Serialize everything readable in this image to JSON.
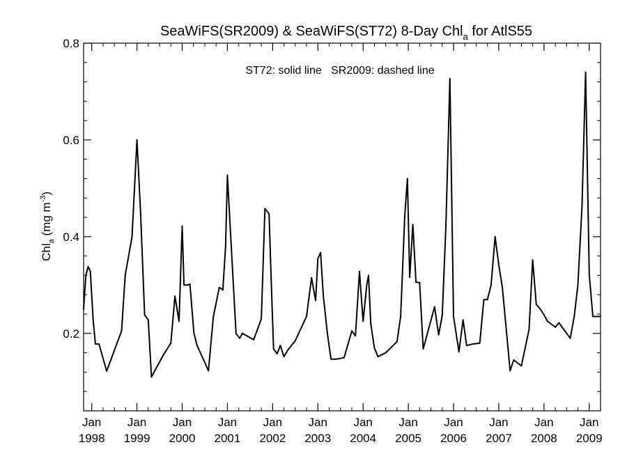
{
  "chart_data": {
    "type": "line",
    "title": {
      "main": "SeaWiFS(SR2009) & SeaWiFS(ST72) 8-Day Chl",
      "sub": "a",
      "tail": " for AtlS55"
    },
    "annotation": "ST72: solid line   SR2009: dashed line",
    "ylabel": {
      "base": "Chl",
      "sub": "a",
      "unit": " (mg m",
      "sup": "-3",
      "close": ")"
    },
    "xlim": [
      1997.82,
      2009.25
    ],
    "ylim": [
      0.04,
      0.8
    ],
    "yticks": [
      {
        "value": 0.2,
        "label": "0.2"
      },
      {
        "value": 0.4,
        "label": "0.4"
      },
      {
        "value": 0.6,
        "label": "0.6"
      },
      {
        "value": 0.8,
        "label": "0.8"
      }
    ],
    "xticks": [
      {
        "value": 1998,
        "month": "Jan",
        "year": "1998"
      },
      {
        "value": 1999,
        "month": "Jan",
        "year": "1999"
      },
      {
        "value": 2000,
        "month": "Jan",
        "year": "2000"
      },
      {
        "value": 2001,
        "month": "Jan",
        "year": "2001"
      },
      {
        "value": 2002,
        "month": "Jan",
        "year": "2002"
      },
      {
        "value": 2003,
        "month": "Jan",
        "year": "2003"
      },
      {
        "value": 2004,
        "month": "Jan",
        "year": "2004"
      },
      {
        "value": 2005,
        "month": "Jan",
        "year": "2005"
      },
      {
        "value": 2006,
        "month": "Jan",
        "year": "2006"
      },
      {
        "value": 2007,
        "month": "Jan",
        "year": "2007"
      },
      {
        "value": 2008,
        "month": "Jan",
        "year": "2008"
      },
      {
        "value": 2009,
        "month": "Jan",
        "year": "2009"
      }
    ],
    "grid": false,
    "series": [
      {
        "style": "solid",
        "color": "#000000",
        "x": [
          1997.82,
          1997.87,
          1997.92,
          1997.97,
          1998.03,
          1998.08,
          1998.16,
          1998.33,
          1998.58,
          1998.66,
          1998.74,
          1998.89,
          1999.0,
          1999.08,
          1999.17,
          1999.25,
          1999.32,
          1999.58,
          1999.75,
          1999.84,
          1999.93,
          2000.0,
          2000.04,
          2000.12,
          2000.17,
          2000.26,
          2000.33,
          2000.58,
          2000.69,
          2000.82,
          2000.9,
          2000.96,
          2001.0,
          2001.07,
          2001.19,
          2001.27,
          2001.33,
          2001.58,
          2001.75,
          2001.83,
          2001.92,
          2001.97,
          2002.02,
          2002.1,
          2002.17,
          2002.25,
          2002.33,
          2002.5,
          2002.75,
          2002.86,
          2002.95,
          2003.0,
          2003.06,
          2003.12,
          2003.21,
          2003.29,
          2003.42,
          2003.58,
          2003.75,
          2003.83,
          2003.92,
          2004.0,
          2004.08,
          2004.12,
          2004.17,
          2004.25,
          2004.33,
          2004.5,
          2004.75,
          2004.83,
          2004.92,
          2004.98,
          2005.03,
          2005.1,
          2005.17,
          2005.25,
          2005.33,
          2005.58,
          2005.67,
          2005.75,
          2005.83,
          2005.92,
          2006.0,
          2006.12,
          2006.21,
          2006.29,
          2006.42,
          2006.58,
          2006.67,
          2006.75,
          2006.83,
          2006.92,
          2007.0,
          2007.08,
          2007.25,
          2007.33,
          2007.5,
          2007.67,
          2007.75,
          2007.83,
          2007.92,
          2008.0,
          2008.08,
          2008.25,
          2008.33,
          2008.58,
          2008.67,
          2008.75,
          2008.84,
          2008.92,
          2009.0,
          2009.08,
          2009.25
        ],
        "y": [
          0.25,
          0.32,
          0.338,
          0.328,
          0.23,
          0.178,
          0.178,
          0.122,
          0.185,
          0.205,
          0.32,
          0.4,
          0.6,
          0.45,
          0.238,
          0.228,
          0.11,
          0.155,
          0.18,
          0.277,
          0.225,
          0.422,
          0.3,
          0.3,
          0.302,
          0.2,
          0.175,
          0.123,
          0.235,
          0.295,
          0.29,
          0.38,
          0.527,
          0.405,
          0.2,
          0.19,
          0.2,
          0.187,
          0.23,
          0.458,
          0.447,
          0.305,
          0.168,
          0.158,
          0.175,
          0.152,
          0.165,
          0.185,
          0.235,
          0.315,
          0.268,
          0.355,
          0.367,
          0.278,
          0.2,
          0.147,
          0.147,
          0.15,
          0.205,
          0.195,
          0.328,
          0.225,
          0.3,
          0.32,
          0.22,
          0.17,
          0.152,
          0.16,
          0.183,
          0.235,
          0.44,
          0.52,
          0.316,
          0.425,
          0.306,
          0.305,
          0.168,
          0.255,
          0.197,
          0.237,
          0.42,
          0.727,
          0.235,
          0.162,
          0.228,
          0.175,
          0.178,
          0.18,
          0.27,
          0.27,
          0.3,
          0.4,
          0.342,
          0.295,
          0.123,
          0.145,
          0.133,
          0.208,
          0.352,
          0.26,
          0.25,
          0.238,
          0.225,
          0.213,
          0.222,
          0.19,
          0.235,
          0.3,
          0.462,
          0.74,
          0.322,
          0.235,
          0.235
        ]
      }
    ]
  }
}
